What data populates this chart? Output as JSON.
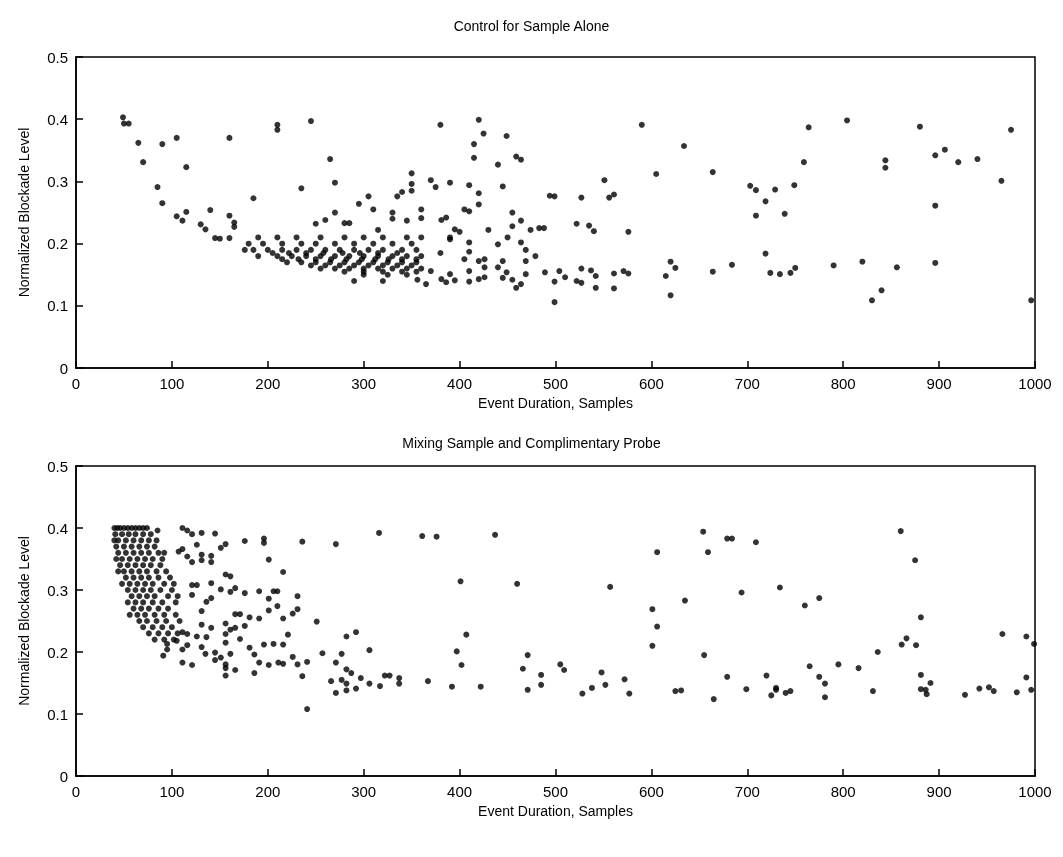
{
  "chart_data": [
    {
      "type": "scatter",
      "title": "Control for Sample Alone",
      "xlabel": "Event Duration, Samples",
      "ylabel": "Normalized Blockade Level",
      "xlim": [
        0,
        1000
      ],
      "xticks": [
        0,
        100,
        200,
        300,
        400,
        500,
        600,
        700,
        800,
        900,
        1000
      ],
      "ylim": [
        0,
        0.5
      ],
      "yticks": [
        0,
        0.1,
        0.2,
        0.3,
        0.4,
        0.5
      ],
      "grid": false,
      "marker": "circle",
      "series": [
        {
          "color": "#000000",
          "x": [
            49,
            50,
            55,
            65,
            70,
            90,
            105,
            115,
            85,
            90,
            105,
            111,
            115,
            130,
            135,
            140,
            145,
            150,
            160,
            160,
            165,
            165,
            160,
            185,
            210,
            210,
            245,
            265,
            270,
            235,
            250,
            260,
            270,
            280,
            285,
            295,
            305,
            310,
            330,
            330,
            335,
            340,
            345,
            350,
            350,
            350,
            360,
            360,
            370,
            375,
            380,
            381,
            386,
            390,
            395,
            400,
            405,
            410,
            410,
            415,
            415,
            420,
            425,
            420,
            420,
            440,
            445,
            449,
            459,
            464,
            430,
            455,
            455,
            464,
            474,
            483,
            488,
            494,
            499,
            464,
            469,
            450,
            440,
            390,
            390,
            410,
            360,
            315,
            479,
            489,
            499,
            499,
            504,
            469,
            469,
            459,
            464,
            445,
            455,
            440,
            445,
            449,
            426,
            426,
            426,
            420,
            420,
            410,
            410,
            410,
            405,
            395,
            390,
            386,
            380,
            381,
            370,
            365,
            356,
            590,
            634,
            605,
            664,
            551,
            527,
            556,
            561,
            522,
            535,
            540,
            576,
            527,
            537,
            542,
            522,
            527,
            542,
            561,
            561,
            571,
            576,
            615,
            620,
            625,
            620,
            664,
            684,
            703,
            709,
            709,
            719,
            729,
            739,
            749,
            759,
            764,
            719,
            724,
            734,
            745,
            750,
            790,
            804,
            820,
            830,
            840,
            844,
            844,
            856,
            880,
            896,
            906,
            896,
            896,
            920,
            940,
            965,
            975,
            996,
            510,
            190,
            210,
            230,
            255,
            280,
            300,
            320,
            345,
            180,
            195,
            215,
            235,
            250,
            270,
            290,
            310,
            330,
            350,
            176,
            185,
            200,
            215,
            230,
            245,
            260,
            275,
            290,
            305,
            320,
            340,
            355,
            205,
            222,
            240,
            258,
            278,
            296,
            315,
            335,
            190,
            210,
            225,
            240,
            255,
            270,
            285,
            300,
            315,
            330,
            345,
            360,
            215,
            232,
            250,
            266,
            282,
            298,
            312,
            326,
            340,
            355,
            220,
            235,
            250,
            265,
            280,
            295,
            310,
            325,
            340,
            355,
            245,
            260,
            275,
            290,
            305,
            320,
            335,
            350,
            255,
            270,
            285,
            300,
            315,
            330,
            345,
            360,
            280,
            300,
            320,
            340,
            355,
            300,
            325,
            345,
            290,
            320
          ],
          "values": [
            0.403,
            0.393,
            0.393,
            0.362,
            0.331,
            0.36,
            0.37,
            0.323,
            0.291,
            0.265,
            0.244,
            0.237,
            0.251,
            0.231,
            0.223,
            0.254,
            0.209,
            0.208,
            0.37,
            0.245,
            0.234,
            0.227,
            0.209,
            0.273,
            0.391,
            0.383,
            0.397,
            0.336,
            0.298,
            0.289,
            0.232,
            0.238,
            0.25,
            0.233,
            0.233,
            0.264,
            0.276,
            0.255,
            0.25,
            0.24,
            0.276,
            0.283,
            0.237,
            0.313,
            0.296,
            0.285,
            0.255,
            0.241,
            0.302,
            0.291,
            0.391,
            0.238,
            0.242,
            0.298,
            0.223,
            0.219,
            0.255,
            0.252,
            0.294,
            0.338,
            0.36,
            0.399,
            0.377,
            0.281,
            0.263,
            0.327,
            0.292,
            0.373,
            0.34,
            0.335,
            0.222,
            0.25,
            0.228,
            0.237,
            0.222,
            0.225,
            0.225,
            0.277,
            0.276,
            0.202,
            0.19,
            0.21,
            0.199,
            0.207,
            0.21,
            0.202,
            0.21,
            0.222,
            0.18,
            0.154,
            0.139,
            0.106,
            0.156,
            0.172,
            0.151,
            0.129,
            0.135,
            0.145,
            0.142,
            0.162,
            0.172,
            0.154,
            0.175,
            0.162,
            0.146,
            0.172,
            0.143,
            0.187,
            0.156,
            0.139,
            0.175,
            0.141,
            0.151,
            0.138,
            0.185,
            0.143,
            0.156,
            0.135,
            0.142,
            0.391,
            0.357,
            0.312,
            0.315,
            0.302,
            0.274,
            0.274,
            0.279,
            0.232,
            0.229,
            0.22,
            0.219,
            0.16,
            0.157,
            0.148,
            0.14,
            0.137,
            0.129,
            0.152,
            0.128,
            0.156,
            0.152,
            0.148,
            0.171,
            0.161,
            0.117,
            0.155,
            0.166,
            0.293,
            0.286,
            0.245,
            0.268,
            0.287,
            0.248,
            0.294,
            0.331,
            0.387,
            0.184,
            0.153,
            0.151,
            0.153,
            0.161,
            0.165,
            0.398,
            0.171,
            0.109,
            0.125,
            0.334,
            0.322,
            0.162,
            0.388,
            0.342,
            0.351,
            0.261,
            0.169,
            0.331,
            0.336,
            0.301,
            0.383,
            0.109,
            0.146,
            0.21,
            0.21,
            0.21,
            0.21,
            0.21,
            0.21,
            0.21,
            0.21,
            0.2,
            0.2,
            0.2,
            0.2,
            0.2,
            0.2,
            0.2,
            0.2,
            0.2,
            0.2,
            0.19,
            0.19,
            0.19,
            0.19,
            0.19,
            0.19,
            0.19,
            0.19,
            0.19,
            0.19,
            0.19,
            0.19,
            0.19,
            0.185,
            0.185,
            0.185,
            0.185,
            0.185,
            0.185,
            0.185,
            0.185,
            0.18,
            0.18,
            0.18,
            0.18,
            0.18,
            0.18,
            0.18,
            0.18,
            0.18,
            0.18,
            0.18,
            0.18,
            0.175,
            0.175,
            0.175,
            0.175,
            0.175,
            0.175,
            0.175,
            0.175,
            0.175,
            0.175,
            0.17,
            0.17,
            0.17,
            0.17,
            0.17,
            0.17,
            0.17,
            0.17,
            0.17,
            0.17,
            0.165,
            0.165,
            0.165,
            0.165,
            0.165,
            0.165,
            0.165,
            0.165,
            0.16,
            0.16,
            0.16,
            0.16,
            0.16,
            0.16,
            0.16,
            0.16,
            0.155,
            0.155,
            0.155,
            0.155,
            0.155,
            0.15,
            0.15,
            0.15,
            0.14,
            0.14
          ]
        }
      ]
    },
    {
      "type": "scatter",
      "title": "Mixing Sample and Complimentary Probe",
      "xlabel": "Event Duration, Samples",
      "ylabel": "Normalized Blockade Level",
      "xlim": [
        0,
        1000
      ],
      "xticks": [
        0,
        100,
        200,
        300,
        400,
        500,
        600,
        700,
        800,
        900,
        1000
      ],
      "ylim": [
        0,
        0.5
      ],
      "yticks": [
        0,
        0.1,
        0.2,
        0.3,
        0.4,
        0.5
      ],
      "grid": false,
      "marker": "circle",
      "series": [
        {
          "color": "#000000",
          "x": [
            85,
            111,
            116,
            121,
            131,
            145,
            176,
            196,
            196,
            236,
            271,
            316,
            361,
            376,
            437,
            401,
            460,
            407,
            397,
            402,
            471,
            466,
            485,
            471,
            485,
            505,
            392,
            422,
            367,
            337,
            337,
            322,
            327,
            317,
            306,
            297,
            292,
            282,
            271,
            266,
            277,
            282,
            287,
            282,
            271,
            277,
            306,
            282,
            292,
            257,
            241,
            241,
            236,
            231,
            226,
            221,
            216,
            251,
            231,
            226,
            231,
            216,
            210,
            206,
            201,
            210,
            201,
            191,
            176,
            201,
            191,
            181,
            176,
            171,
            181,
            196,
            206,
            216,
            186,
            191,
            186,
            201,
            211,
            216,
            166,
            156,
            156,
            156,
            161,
            151,
            145,
            145,
            135,
            121,
            111,
            91,
            95,
            95,
            156,
            156,
            161,
            166,
            156,
            171,
            166,
            141,
            151,
            161,
            166,
            156,
            161,
            151,
            156,
            141,
            141,
            131,
            131,
            126,
            116,
            121,
            111,
            107,
            141,
            136,
            131,
            141,
            136,
            131,
            126,
            131,
            121,
            126,
            121,
            116,
            111,
            116,
            105,
            111,
            509,
            528,
            538,
            548,
            552,
            557,
            572,
            577,
            601,
            606,
            606,
            601,
            625,
            631,
            635,
            654,
            659,
            655,
            665,
            679,
            684,
            694,
            679,
            699,
            709,
            720,
            725,
            730,
            730,
            734,
            740,
            745,
            760,
            765,
            775,
            775,
            781,
            781,
            795,
            816,
            831,
            836,
            860,
            861,
            866,
            875,
            881,
            876,
            881,
            881,
            886,
            887,
            891,
            927,
            942,
            952,
            957,
            966,
            981,
            991,
            991,
            996,
            999,
            40,
            43,
            46,
            50,
            54,
            58,
            62,
            66,
            70,
            74,
            41,
            48,
            55,
            62,
            70,
            78,
            40,
            44,
            52,
            60,
            68,
            76,
            84,
            42,
            50,
            58,
            66,
            74,
            82,
            44,
            52,
            60,
            68,
            76,
            86,
            92,
            42,
            48,
            56,
            64,
            72,
            80,
            90,
            46,
            54,
            62,
            70,
            78,
            88,
            44,
            50,
            58,
            66,
            74,
            84,
            94,
            52,
            60,
            68,
            76,
            86,
            98,
            48,
            56,
            64,
            72,
            80,
            92,
            102,
            54,
            62,
            70,
            78,
            88,
            100,
            58,
            66,
            74,
            82,
            96,
            106,
            54,
            62,
            70,
            80,
            90,
            104,
            60,
            68,
            76,
            86,
            96,
            56,
            64,
            72,
            82,
            92,
            104,
            66,
            74,
            84,
            94,
            108,
            70,
            80,
            90,
            100,
            76,
            86,
            96,
            106,
            82,
            92,
            102
          ],
          "values": [
            0.396,
            0.4,
            0.396,
            0.39,
            0.392,
            0.391,
            0.379,
            0.383,
            0.376,
            0.378,
            0.374,
            0.392,
            0.387,
            0.386,
            0.389,
            0.314,
            0.31,
            0.228,
            0.201,
            0.179,
            0.195,
            0.173,
            0.163,
            0.139,
            0.147,
            0.18,
            0.144,
            0.144,
            0.153,
            0.158,
            0.149,
            0.162,
            0.162,
            0.145,
            0.149,
            0.158,
            0.141,
            0.138,
            0.134,
            0.153,
            0.155,
            0.149,
            0.166,
            0.172,
            0.183,
            0.197,
            0.203,
            0.225,
            0.232,
            0.198,
            0.108,
            0.184,
            0.161,
            0.18,
            0.192,
            0.228,
            0.254,
            0.249,
            0.269,
            0.262,
            0.29,
            0.329,
            0.298,
            0.298,
            0.286,
            0.274,
            0.267,
            0.298,
            0.295,
            0.349,
            0.254,
            0.256,
            0.242,
            0.221,
            0.207,
            0.212,
            0.213,
            0.212,
            0.196,
            0.183,
            0.166,
            0.179,
            0.183,
            0.181,
            0.171,
            0.162,
            0.174,
            0.18,
            0.197,
            0.191,
            0.187,
            0.199,
            0.197,
            0.179,
            0.183,
            0.194,
            0.204,
            0.213,
            0.215,
            0.229,
            0.236,
            0.239,
            0.246,
            0.261,
            0.261,
            0.311,
            0.301,
            0.297,
            0.303,
            0.325,
            0.322,
            0.368,
            0.374,
            0.355,
            0.345,
            0.357,
            0.348,
            0.373,
            0.354,
            0.345,
            0.366,
            0.362,
            0.287,
            0.281,
            0.266,
            0.239,
            0.224,
            0.244,
            0.225,
            0.208,
            0.308,
            0.308,
            0.292,
            0.229,
            0.204,
            0.211,
            0.218,
            0.232,
            0.171,
            0.133,
            0.142,
            0.167,
            0.147,
            0.305,
            0.156,
            0.133,
            0.269,
            0.361,
            0.241,
            0.21,
            0.137,
            0.138,
            0.283,
            0.394,
            0.361,
            0.195,
            0.124,
            0.383,
            0.383,
            0.296,
            0.16,
            0.14,
            0.377,
            0.162,
            0.13,
            0.142,
            0.139,
            0.304,
            0.134,
            0.137,
            0.275,
            0.177,
            0.287,
            0.16,
            0.149,
            0.127,
            0.18,
            0.174,
            0.137,
            0.2,
            0.395,
            0.212,
            0.222,
            0.348,
            0.256,
            0.211,
            0.163,
            0.14,
            0.139,
            0.132,
            0.15,
            0.131,
            0.141,
            0.143,
            0.137,
            0.229,
            0.135,
            0.225,
            0.159,
            0.139,
            0.213,
            0.4,
            0.4,
            0.4,
            0.4,
            0.4,
            0.4,
            0.4,
            0.4,
            0.4,
            0.4,
            0.39,
            0.39,
            0.39,
            0.39,
            0.39,
            0.39,
            0.38,
            0.38,
            0.38,
            0.38,
            0.38,
            0.38,
            0.38,
            0.37,
            0.37,
            0.37,
            0.37,
            0.37,
            0.37,
            0.36,
            0.36,
            0.36,
            0.36,
            0.36,
            0.36,
            0.36,
            0.35,
            0.35,
            0.35,
            0.35,
            0.35,
            0.35,
            0.35,
            0.34,
            0.34,
            0.34,
            0.34,
            0.34,
            0.34,
            0.33,
            0.33,
            0.33,
            0.33,
            0.33,
            0.33,
            0.33,
            0.32,
            0.32,
            0.32,
            0.32,
            0.32,
            0.32,
            0.31,
            0.31,
            0.31,
            0.31,
            0.31,
            0.31,
            0.31,
            0.3,
            0.3,
            0.3,
            0.3,
            0.3,
            0.3,
            0.29,
            0.29,
            0.29,
            0.29,
            0.29,
            0.29,
            0.28,
            0.28,
            0.28,
            0.28,
            0.28,
            0.28,
            0.27,
            0.27,
            0.27,
            0.27,
            0.27,
            0.26,
            0.26,
            0.26,
            0.26,
            0.26,
            0.26,
            0.25,
            0.25,
            0.25,
            0.25,
            0.25,
            0.24,
            0.24,
            0.24,
            0.24,
            0.23,
            0.23,
            0.23,
            0.23,
            0.22,
            0.22,
            0.22
          ]
        }
      ]
    }
  ]
}
